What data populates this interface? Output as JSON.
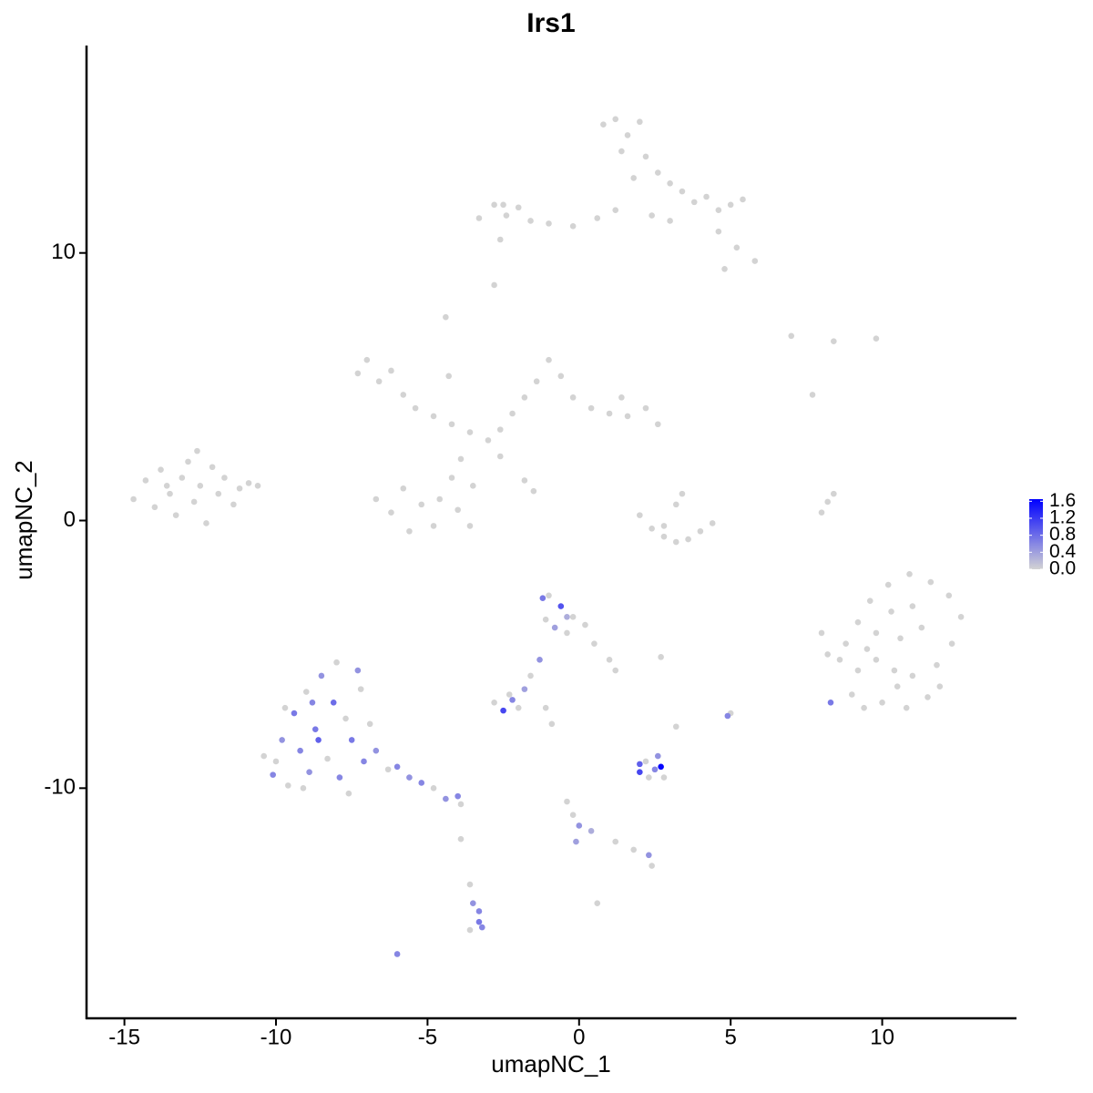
{
  "chart_data": {
    "type": "scatter",
    "title": "Irs1",
    "x_label": "umapNC_1",
    "y_label": "umapNC_2",
    "xlim": [
      -16.25,
      14.4
    ],
    "ylim": [
      -18.6,
      17.75
    ],
    "xticks": [
      -15,
      -10,
      -5,
      0,
      5,
      10
    ],
    "yticks": [
      -10,
      0,
      10
    ],
    "low_color": "#d3d3d3",
    "high_color": "#0000ff",
    "colorlim": [
      0,
      1.65
    ],
    "colorticks": [
      {
        "value": 0,
        "label": "0.0"
      },
      0.4,
      0.8,
      1.2,
      1.6
    ],
    "grid": false,
    "x": [
      -14.7,
      -14.3,
      -14.0,
      -13.8,
      -13.5,
      -13.3,
      -13.1,
      -12.9,
      -12.7,
      -12.5,
      -12.3,
      -12.1,
      -11.9,
      -11.7,
      -11.4,
      -11.2,
      -10.9,
      -10.6,
      -12.6,
      -13.6,
      -7.3,
      -7.0,
      -6.6,
      -6.2,
      -5.8,
      -5.4,
      -4.8,
      -4.2,
      -3.6,
      -3.0,
      -2.6,
      -2.2,
      -1.8,
      -1.4,
      -1.0,
      -0.6,
      -0.2,
      0.4,
      1.0,
      1.6,
      2.2,
      2.6,
      1.4,
      -4.3,
      -4.4,
      -3.9,
      -4.2,
      -4.6,
      -5.2,
      -5.8,
      -6.2,
      -5.6,
      -4.8,
      -4.0,
      -3.5,
      -1.5,
      -1.8,
      -2.6,
      -6.7,
      -3.6,
      -3.3,
      -2.8,
      -2.4,
      -2.0,
      -1.6,
      -1.0,
      -0.2,
      0.6,
      1.2,
      0.8,
      1.2,
      1.6,
      2.0,
      1.4,
      2.2,
      1.8,
      2.6,
      3.0,
      3.4,
      3.8,
      4.2,
      4.6,
      5.0,
      5.4,
      4.6,
      5.2,
      5.8,
      4.8,
      3.0,
      2.4,
      -2.6,
      -2.8,
      -2.5,
      2.0,
      2.4,
      2.8,
      3.2,
      3.6,
      4.0,
      4.4,
      3.2,
      3.4,
      2.8,
      8.0,
      8.2,
      8.4,
      7.0,
      8.4,
      9.8,
      7.7,
      9.0,
      9.4,
      10.0,
      10.8,
      11.5,
      9.2,
      9.8,
      10.4,
      11.0,
      11.8,
      12.3,
      12.6,
      12.2,
      11.6,
      10.9,
      10.2,
      9.6,
      9.2,
      9.8,
      10.6,
      11.3,
      11.0,
      10.3,
      8.8,
      8.6,
      8.0,
      8.2,
      11.9,
      10.5,
      9.5,
      -10.4,
      -10.1,
      -9.8,
      -9.6,
      -9.4,
      -9.2,
      -9.0,
      -8.9,
      -8.7,
      -8.5,
      -8.3,
      -8.1,
      -7.9,
      -7.7,
      -7.5,
      -7.3,
      -7.1,
      -6.9,
      -6.7,
      -9.7,
      -8.0,
      -7.6,
      -9.1,
      -6.3,
      -6.0,
      -5.6,
      -5.2,
      -4.8,
      -4.4,
      -4.0,
      -3.9,
      -8.6,
      -8.8,
      -7.2,
      -10.0,
      -1.0,
      -0.6,
      -0.2,
      0.2,
      -1.1,
      -0.4,
      0.5,
      1.0,
      1.2,
      -0.8,
      -1.2,
      -0.4,
      -1.3,
      -1.6,
      -1.8,
      -2.8,
      -2.5,
      -2.2,
      -2.0,
      -2.3,
      -1.1,
      -0.9,
      2.0,
      2.2,
      2.5,
      2.7,
      2.6,
      2.3,
      2.8,
      2.0,
      3.2,
      2.7,
      5.0,
      4.9,
      8.3,
      -0.4,
      -0.2,
      0.0,
      -0.1,
      0.4,
      1.2,
      1.8,
      2.3,
      2.4,
      0.6,
      -3.6,
      -3.5,
      -3.3,
      -3.3,
      -3.6,
      -3.2,
      -6.0,
      -3.9
    ],
    "y": [
      0.8,
      1.5,
      0.5,
      1.9,
      1.0,
      0.2,
      1.6,
      2.2,
      0.7,
      1.3,
      -0.1,
      2.0,
      1.0,
      1.6,
      0.6,
      1.2,
      1.4,
      1.3,
      2.6,
      1.3,
      5.5,
      6.0,
      5.2,
      5.6,
      4.7,
      4.2,
      3.9,
      3.6,
      3.3,
      3.0,
      3.4,
      4.0,
      4.6,
      5.2,
      6.0,
      5.4,
      4.6,
      4.2,
      4.0,
      3.9,
      4.2,
      3.6,
      4.6,
      5.4,
      7.6,
      2.3,
      1.6,
      0.8,
      0.6,
      1.2,
      0.3,
      -0.4,
      -0.2,
      0.4,
      1.3,
      1.1,
      1.5,
      2.4,
      0.8,
      -0.2,
      11.3,
      11.8,
      11.4,
      11.7,
      11.2,
      11.1,
      11.0,
      11.3,
      11.6,
      14.8,
      15.0,
      14.4,
      14.9,
      13.8,
      13.6,
      12.8,
      13.0,
      12.6,
      12.3,
      11.9,
      12.1,
      11.6,
      11.8,
      12.0,
      10.8,
      10.2,
      9.7,
      9.4,
      11.2,
      11.4,
      10.5,
      8.8,
      11.8,
      0.2,
      -0.3,
      -0.6,
      -0.8,
      -0.7,
      -0.4,
      -0.1,
      0.6,
      1.0,
      -0.2,
      0.3,
      0.7,
      1.0,
      6.9,
      6.7,
      6.8,
      4.7,
      -6.5,
      -7.0,
      -6.8,
      -7.0,
      -6.6,
      -5.6,
      -5.2,
      -5.6,
      -5.8,
      -5.4,
      -4.6,
      -3.6,
      -2.8,
      -2.3,
      -2.0,
      -2.4,
      -3.0,
      -3.8,
      -4.2,
      -4.4,
      -4.0,
      -3.2,
      -3.4,
      -4.6,
      -5.2,
      -4.2,
      -5.0,
      -6.2,
      -6.2,
      -4.8,
      -8.8,
      -9.5,
      -8.2,
      -9.9,
      -7.2,
      -8.6,
      -6.4,
      -9.4,
      -7.8,
      -5.8,
      -8.9,
      -6.8,
      -9.6,
      -7.4,
      -8.2,
      -5.6,
      -9.0,
      -7.6,
      -8.6,
      -7.0,
      -5.3,
      -10.2,
      -10.0,
      -9.3,
      -9.2,
      -9.6,
      -9.8,
      -10.0,
      -10.4,
      -10.3,
      -10.6,
      -8.2,
      -6.8,
      -6.3,
      -9.0,
      -2.8,
      -3.2,
      -3.6,
      -3.9,
      -3.7,
      -4.2,
      -4.6,
      -5.2,
      -5.6,
      -4.0,
      -2.9,
      -3.6,
      -5.2,
      -5.8,
      -6.3,
      -6.8,
      -7.1,
      -6.7,
      -7.0,
      -6.5,
      -7.0,
      -7.6,
      -9.4,
      -9.0,
      -9.3,
      -9.2,
      -8.8,
      -9.6,
      -9.6,
      -9.1,
      -7.7,
      -5.1,
      -7.2,
      -7.3,
      -6.8,
      -10.5,
      -11.0,
      -11.4,
      -12.0,
      -11.6,
      -12.0,
      -12.3,
      -12.5,
      -12.9,
      -14.3,
      -13.6,
      -14.3,
      -14.6,
      -15.0,
      -15.3,
      -15.2,
      -16.2,
      -11.9
    ],
    "values": [
      0,
      0,
      0,
      0,
      0,
      0,
      0,
      0,
      0,
      0,
      0,
      0,
      0,
      0,
      0,
      0,
      0,
      0,
      0,
      0,
      0,
      0,
      0,
      0,
      0,
      0,
      0,
      0,
      0,
      0,
      0,
      0,
      0,
      0,
      0,
      0,
      0,
      0,
      0,
      0,
      0,
      0,
      0,
      0,
      0,
      0,
      0,
      0,
      0,
      0,
      0,
      0,
      0,
      0,
      0,
      0,
      0,
      0,
      0,
      0,
      0,
      0,
      0,
      0,
      0,
      0,
      0,
      0,
      0,
      0,
      0,
      0,
      0,
      0,
      0,
      0,
      0,
      0,
      0,
      0,
      0,
      0,
      0,
      0,
      0,
      0,
      0,
      0,
      0,
      0,
      0,
      0,
      0,
      0,
      0,
      0,
      0,
      0,
      0,
      0,
      0,
      0,
      0,
      0,
      0,
      0,
      0,
      0,
      0,
      0,
      0,
      0,
      0,
      0,
      0,
      0,
      0,
      0,
      0,
      0,
      0,
      0,
      0,
      0,
      0,
      0,
      0,
      0,
      0,
      0,
      0,
      0,
      0,
      0,
      0,
      0,
      0,
      0,
      0,
      0,
      0,
      0.6,
      0.5,
      0,
      0.7,
      0.6,
      0,
      0.5,
      0.7,
      0.5,
      0,
      0.8,
      0.6,
      0,
      0.7,
      0.5,
      0.6,
      0,
      0.5,
      0,
      0,
      0,
      0,
      0,
      0.6,
      0.5,
      0.6,
      0,
      0.5,
      0.6,
      0,
      0.9,
      0.6,
      0,
      0,
      0,
      1.0,
      0,
      0,
      0,
      0,
      0,
      0,
      0,
      0.4,
      0.7,
      0.3,
      0.5,
      0,
      0.4,
      0,
      1.1,
      0.6,
      0,
      0,
      0,
      0,
      1.1,
      0,
      0.6,
      1.6,
      0.5,
      0,
      0,
      0.9,
      0,
      0,
      0,
      0.6,
      0.7,
      0,
      0,
      0.5,
      0.4,
      0.3,
      0,
      0,
      0.5,
      0,
      0,
      0,
      0.5,
      0.6,
      0.7,
      0,
      0.6,
      0.6,
      0
    ]
  }
}
